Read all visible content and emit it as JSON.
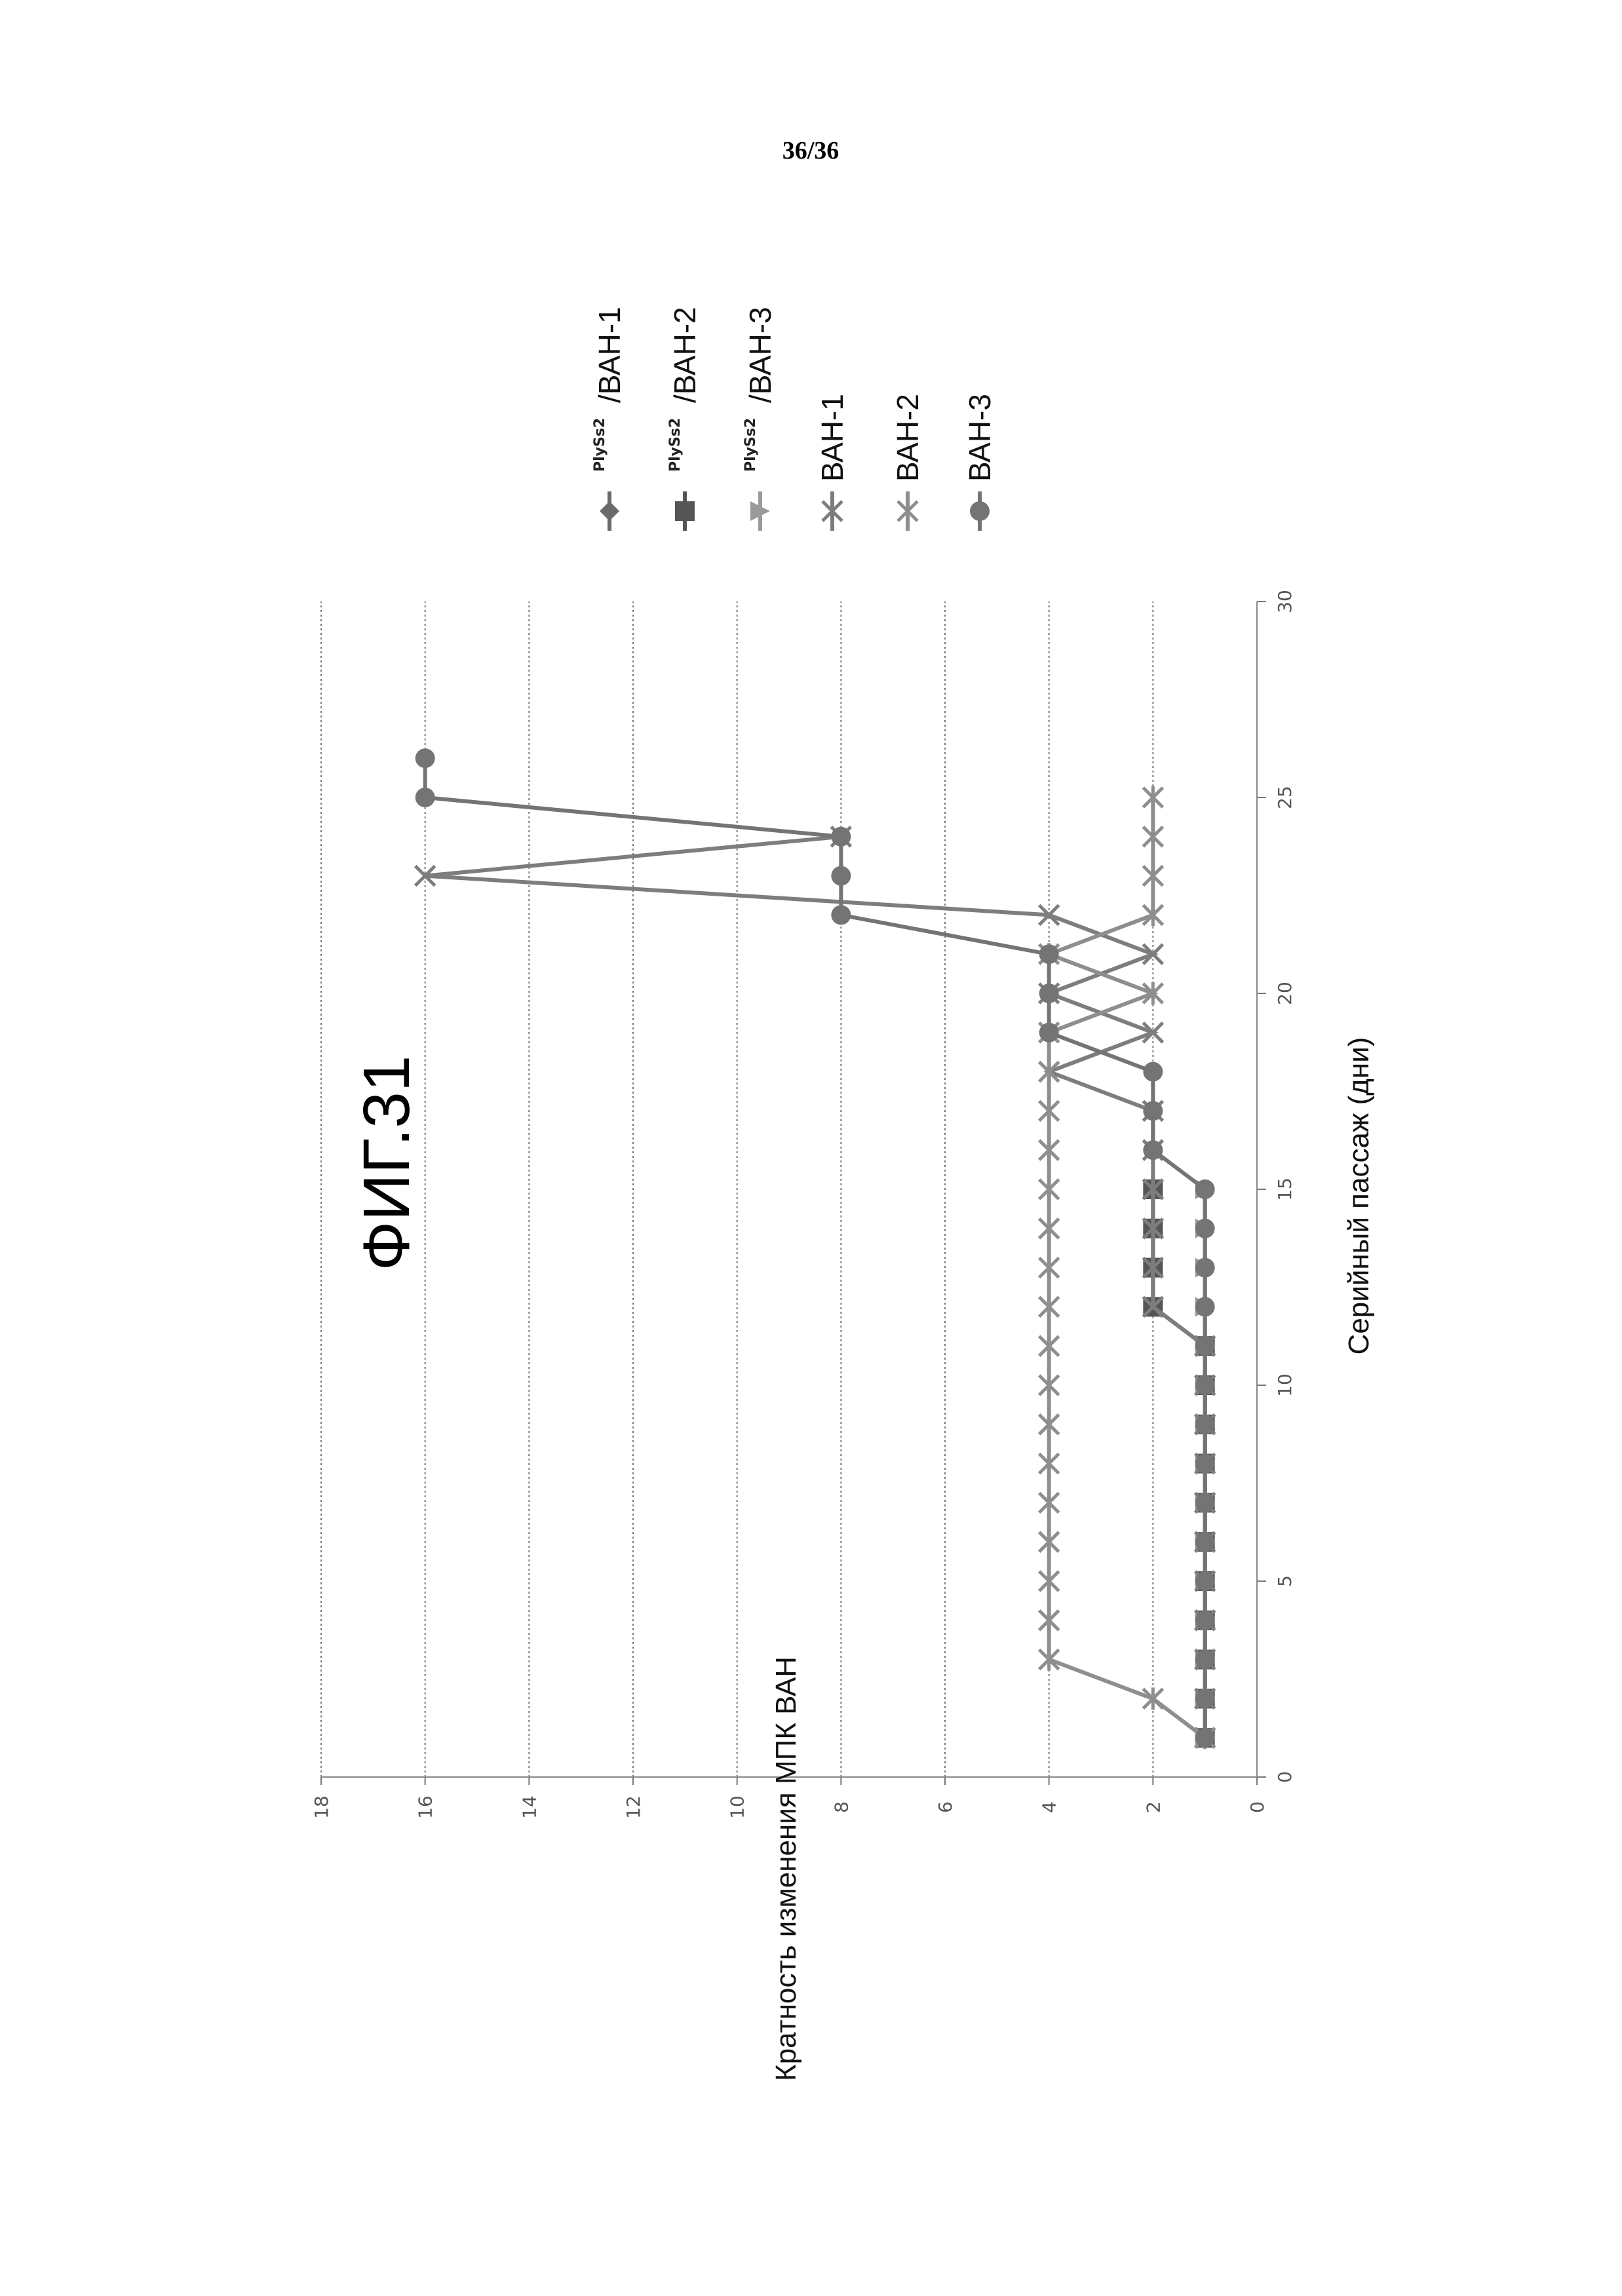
{
  "page": {
    "number": "36/36"
  },
  "figure": {
    "title": "ФИГ.31"
  },
  "chart_data": {
    "type": "line",
    "title": "",
    "xlabel": "Серийный пассаж (дни)",
    "ylabel": "Кратность изменения МПК ВАН",
    "xlim": [
      0,
      30
    ],
    "ylim": [
      0,
      18
    ],
    "xticks": [
      "0",
      "5",
      "10",
      "15",
      "20",
      "25",
      "30"
    ],
    "yticks": [
      "0",
      "2",
      "4",
      "6",
      "8",
      "10",
      "12",
      "14",
      "16",
      "18"
    ],
    "grid": "horizontal dotted",
    "legend_position": "right",
    "orientation": "rotated 90° counter-clockwise on page",
    "series": [
      {
        "name": "/ВАН-1",
        "prefix": "PlySs2",
        "marker": "diamond",
        "color": "#6a6a6a",
        "x": [
          1,
          2,
          3,
          4,
          5,
          6,
          7,
          8,
          9,
          10,
          11,
          12,
          13,
          14,
          15
        ],
        "y": [
          1,
          1,
          1,
          1,
          1,
          1,
          1,
          1,
          1,
          1,
          1,
          1,
          1,
          1,
          1
        ]
      },
      {
        "name": "/ВАН-2",
        "prefix": "PlySs2",
        "marker": "square",
        "color": "#555555",
        "x": [
          1,
          2,
          3,
          4,
          5,
          6,
          7,
          8,
          9,
          10,
          11,
          12,
          13,
          14,
          15
        ],
        "y": [
          1,
          1,
          1,
          1,
          1,
          1,
          1,
          1,
          1,
          1,
          1,
          2,
          2,
          2,
          2
        ]
      },
      {
        "name": "/ВАН-3",
        "prefix": "PlySs2",
        "marker": "triangle",
        "color": "#9a9a9a",
        "x": [
          1,
          2,
          3,
          4,
          5,
          6,
          7,
          8,
          9,
          10,
          11,
          12,
          13,
          14,
          15
        ],
        "y": [
          1,
          1,
          1,
          1,
          1,
          1,
          1,
          1,
          1,
          1,
          1,
          1,
          1,
          1,
          1
        ]
      },
      {
        "name": "ВАН-1",
        "marker": "x",
        "color": "#7d7d7d",
        "x": [
          1,
          2,
          3,
          4,
          5,
          6,
          7,
          8,
          9,
          10,
          11,
          12,
          13,
          14,
          15,
          16,
          17,
          18,
          19,
          20,
          21,
          22,
          23,
          24
        ],
        "y": [
          1,
          1,
          1,
          1,
          1,
          1,
          1,
          1,
          1,
          1,
          1,
          2,
          2,
          2,
          2,
          2,
          2,
          4,
          2,
          4,
          2,
          4,
          16,
          8
        ]
      },
      {
        "name": "ВАН-2",
        "marker": "star",
        "color": "#8e8e8e",
        "x": [
          1,
          2,
          3,
          4,
          5,
          6,
          7,
          8,
          9,
          10,
          11,
          12,
          13,
          14,
          15,
          16,
          17,
          18,
          19,
          20,
          21,
          22,
          23,
          24,
          25
        ],
        "y": [
          1,
          2,
          4,
          4,
          4,
          4,
          4,
          4,
          4,
          4,
          4,
          4,
          4,
          4,
          4,
          4,
          4,
          4,
          4,
          2,
          4,
          2,
          2,
          2,
          2
        ]
      },
      {
        "name": "ВАН-3",
        "marker": "circle",
        "color": "#747474",
        "x": [
          1,
          2,
          3,
          4,
          5,
          6,
          7,
          8,
          9,
          10,
          11,
          12,
          13,
          14,
          15,
          16,
          17,
          18,
          19,
          20,
          21,
          22,
          23,
          24,
          25,
          26
        ],
        "y": [
          1,
          1,
          1,
          1,
          1,
          1,
          1,
          1,
          1,
          1,
          1,
          1,
          1,
          1,
          1,
          2,
          2,
          2,
          4,
          4,
          4,
          8,
          8,
          8,
          16,
          16
        ]
      }
    ]
  }
}
